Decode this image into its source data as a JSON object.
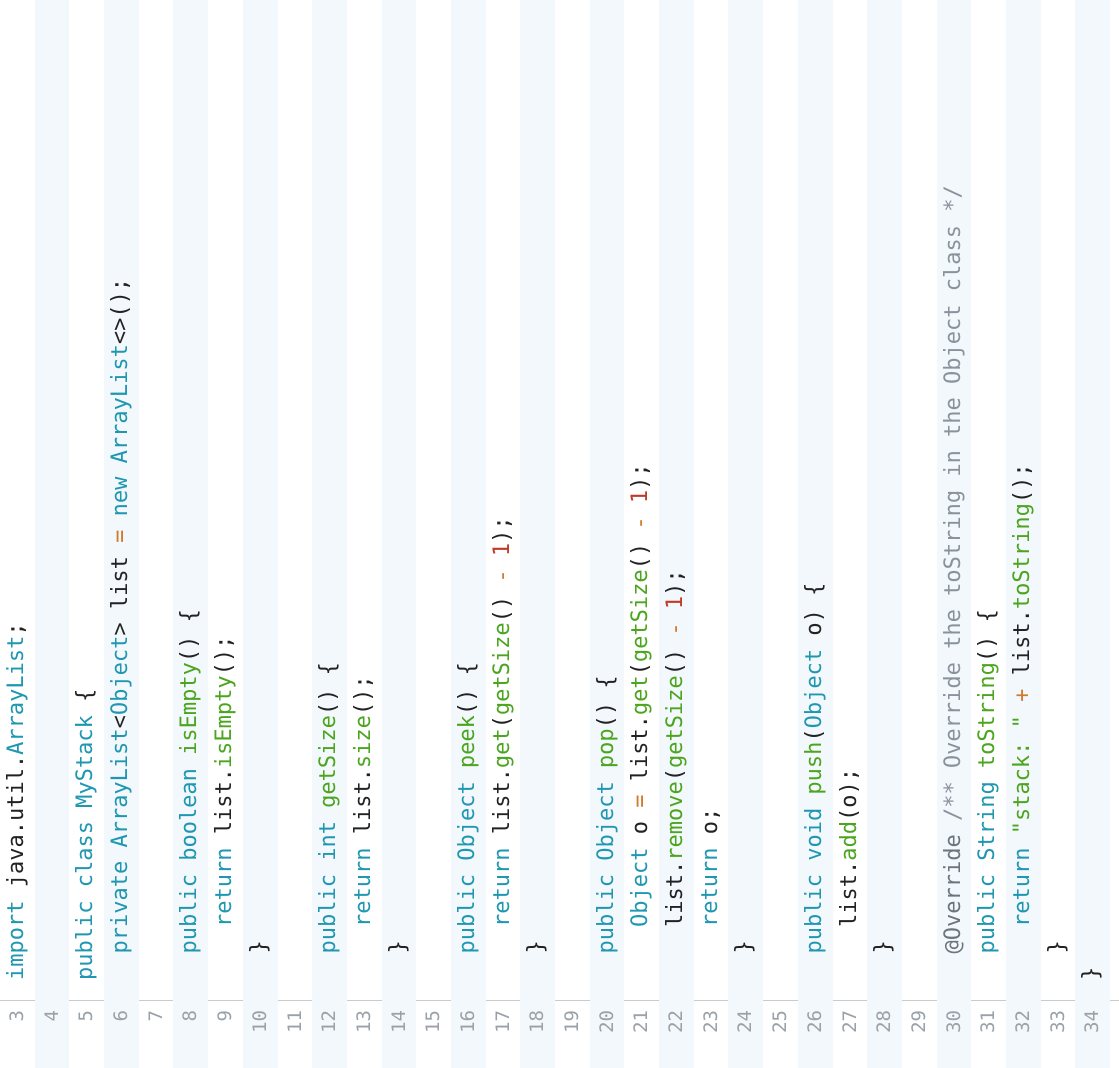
{
  "editor": {
    "lines": [
      {
        "n": "3",
        "tokens": [
          {
            "t": "import",
            "c": "kw"
          },
          {
            "t": " java.util.",
            "c": "pl"
          },
          {
            "t": "ArrayList",
            "c": "ty"
          },
          {
            "t": ";",
            "c": "pl"
          }
        ]
      },
      {
        "n": "4",
        "tokens": []
      },
      {
        "n": "5",
        "tokens": [
          {
            "t": "public class ",
            "c": "kw"
          },
          {
            "t": "MyStack",
            "c": "ty"
          },
          {
            "t": " {",
            "c": "pl"
          }
        ]
      },
      {
        "n": "6",
        "tokens": [
          {
            "t": "  private ",
            "c": "kw"
          },
          {
            "t": "ArrayList",
            "c": "ty"
          },
          {
            "t": "<",
            "c": "pl"
          },
          {
            "t": "Object",
            "c": "ty"
          },
          {
            "t": "> list ",
            "c": "pl"
          },
          {
            "t": "=",
            "c": "op"
          },
          {
            "t": " new ",
            "c": "kw"
          },
          {
            "t": "ArrayList",
            "c": "ty"
          },
          {
            "t": "<>();",
            "c": "pl"
          }
        ]
      },
      {
        "n": "7",
        "tokens": []
      },
      {
        "n": "8",
        "tokens": [
          {
            "t": "  public boolean ",
            "c": "kw"
          },
          {
            "t": "isEmpty",
            "c": "fn"
          },
          {
            "t": "() {",
            "c": "pl"
          }
        ]
      },
      {
        "n": "9",
        "tokens": [
          {
            "t": "    return ",
            "c": "kw"
          },
          {
            "t": "list.",
            "c": "pl"
          },
          {
            "t": "isEmpty",
            "c": "fn"
          },
          {
            "t": "();",
            "c": "pl"
          }
        ]
      },
      {
        "n": "10",
        "tokens": [
          {
            "t": "  }",
            "c": "pl"
          }
        ]
      },
      {
        "n": "11",
        "tokens": []
      },
      {
        "n": "12",
        "tokens": [
          {
            "t": "  public int ",
            "c": "kw"
          },
          {
            "t": "getSize",
            "c": "fn"
          },
          {
            "t": "() {",
            "c": "pl"
          }
        ]
      },
      {
        "n": "13",
        "tokens": [
          {
            "t": "    return ",
            "c": "kw"
          },
          {
            "t": "list.",
            "c": "pl"
          },
          {
            "t": "size",
            "c": "fn"
          },
          {
            "t": "();",
            "c": "pl"
          }
        ]
      },
      {
        "n": "14",
        "tokens": [
          {
            "t": "  }",
            "c": "pl"
          }
        ]
      },
      {
        "n": "15",
        "tokens": []
      },
      {
        "n": "16",
        "tokens": [
          {
            "t": "  public ",
            "c": "kw"
          },
          {
            "t": "Object ",
            "c": "ty"
          },
          {
            "t": "peek",
            "c": "fn"
          },
          {
            "t": "() {",
            "c": "pl"
          }
        ]
      },
      {
        "n": "17",
        "tokens": [
          {
            "t": "    return ",
            "c": "kw"
          },
          {
            "t": "list.",
            "c": "pl"
          },
          {
            "t": "get",
            "c": "fn"
          },
          {
            "t": "(",
            "c": "pl"
          },
          {
            "t": "getSize",
            "c": "fn"
          },
          {
            "t": "() ",
            "c": "pl"
          },
          {
            "t": "-",
            "c": "op"
          },
          {
            "t": " ",
            "c": "pl"
          },
          {
            "t": "1",
            "c": "num"
          },
          {
            "t": ");",
            "c": "pl"
          }
        ]
      },
      {
        "n": "18",
        "tokens": [
          {
            "t": "  }",
            "c": "pl"
          }
        ]
      },
      {
        "n": "19",
        "tokens": []
      },
      {
        "n": "20",
        "tokens": [
          {
            "t": "  public ",
            "c": "kw"
          },
          {
            "t": "Object ",
            "c": "ty"
          },
          {
            "t": "pop",
            "c": "fn"
          },
          {
            "t": "() {",
            "c": "pl"
          }
        ]
      },
      {
        "n": "21",
        "tokens": [
          {
            "t": "    Object ",
            "c": "ty"
          },
          {
            "t": "o ",
            "c": "pl"
          },
          {
            "t": "=",
            "c": "op"
          },
          {
            "t": " list.",
            "c": "pl"
          },
          {
            "t": "get",
            "c": "fn"
          },
          {
            "t": "(",
            "c": "pl"
          },
          {
            "t": "getSize",
            "c": "fn"
          },
          {
            "t": "() ",
            "c": "pl"
          },
          {
            "t": "-",
            "c": "op"
          },
          {
            "t": " ",
            "c": "pl"
          },
          {
            "t": "1",
            "c": "num"
          },
          {
            "t": ");",
            "c": "pl"
          }
        ]
      },
      {
        "n": "22",
        "tokens": [
          {
            "t": "    list.",
            "c": "pl"
          },
          {
            "t": "remove",
            "c": "fn"
          },
          {
            "t": "(",
            "c": "pl"
          },
          {
            "t": "getSize",
            "c": "fn"
          },
          {
            "t": "() ",
            "c": "pl"
          },
          {
            "t": "-",
            "c": "op"
          },
          {
            "t": " ",
            "c": "pl"
          },
          {
            "t": "1",
            "c": "num"
          },
          {
            "t": ");",
            "c": "pl"
          }
        ]
      },
      {
        "n": "23",
        "tokens": [
          {
            "t": "    return ",
            "c": "kw"
          },
          {
            "t": "o;",
            "c": "pl"
          }
        ]
      },
      {
        "n": "24",
        "tokens": [
          {
            "t": "  }",
            "c": "pl"
          }
        ]
      },
      {
        "n": "25",
        "tokens": []
      },
      {
        "n": "26",
        "tokens": [
          {
            "t": "  public void ",
            "c": "kw"
          },
          {
            "t": "push",
            "c": "fn"
          },
          {
            "t": "(",
            "c": "pl"
          },
          {
            "t": "Object ",
            "c": "ty"
          },
          {
            "t": "o) {",
            "c": "pl"
          }
        ]
      },
      {
        "n": "27",
        "tokens": [
          {
            "t": "    list.",
            "c": "pl"
          },
          {
            "t": "add",
            "c": "fn"
          },
          {
            "t": "(o);",
            "c": "pl"
          }
        ]
      },
      {
        "n": "28",
        "tokens": [
          {
            "t": "  }",
            "c": "pl"
          }
        ]
      },
      {
        "n": "29",
        "tokens": []
      },
      {
        "n": "30",
        "tokens": [
          {
            "t": "  @Override ",
            "c": "an"
          },
          {
            "t": "/** Override the toString in the Object class */",
            "c": "cm"
          }
        ]
      },
      {
        "n": "31",
        "tokens": [
          {
            "t": "  public ",
            "c": "kw"
          },
          {
            "t": "String ",
            "c": "ty"
          },
          {
            "t": "toString",
            "c": "fn"
          },
          {
            "t": "() {",
            "c": "pl"
          }
        ]
      },
      {
        "n": "32",
        "tokens": [
          {
            "t": "    return ",
            "c": "kw"
          },
          {
            "t": "\"stack: \"",
            "c": "str"
          },
          {
            "t": " ",
            "c": "pl"
          },
          {
            "t": "+",
            "c": "op"
          },
          {
            "t": " list.",
            "c": "pl"
          },
          {
            "t": "toString",
            "c": "fn"
          },
          {
            "t": "();",
            "c": "pl"
          }
        ]
      },
      {
        "n": "33",
        "tokens": [
          {
            "t": "  }",
            "c": "pl"
          }
        ]
      },
      {
        "n": "34",
        "tokens": [
          {
            "t": "}",
            "c": "pl"
          }
        ]
      }
    ]
  }
}
